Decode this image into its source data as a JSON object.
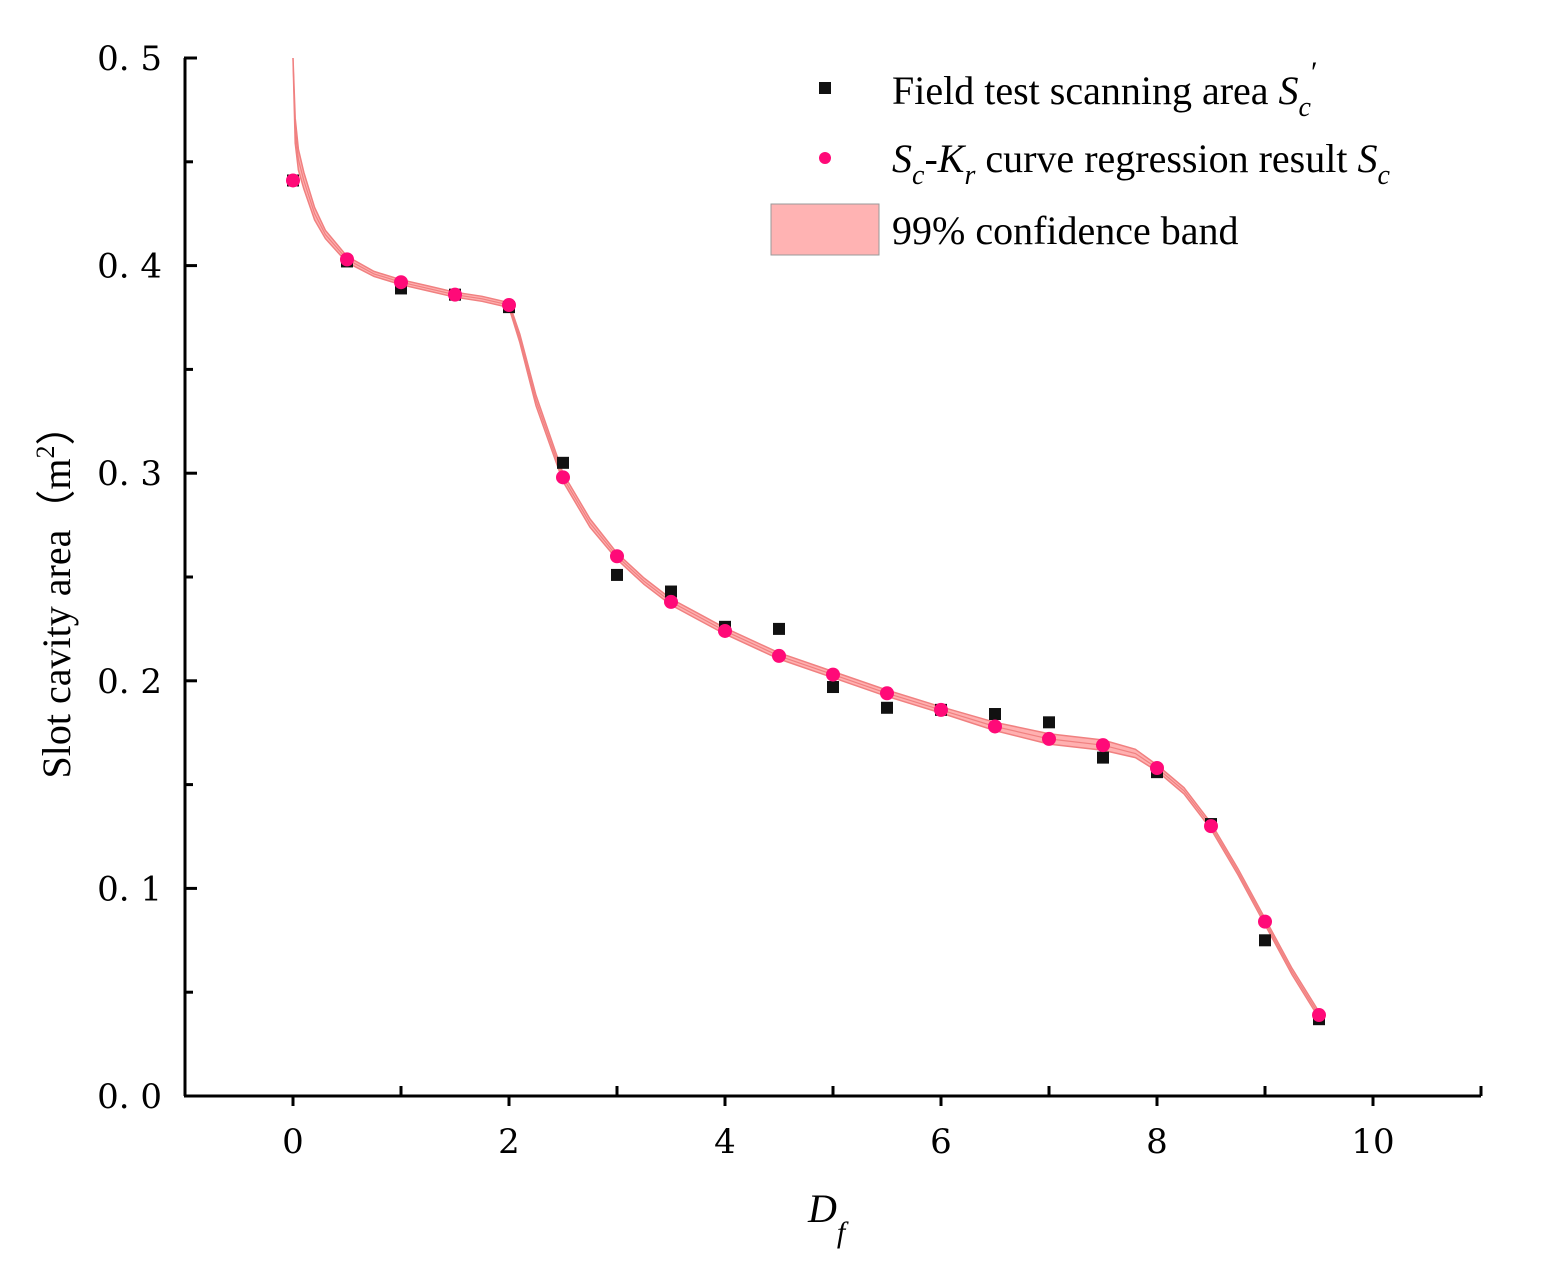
{
  "chart_data": {
    "type": "scatter",
    "xlabel": "D",
    "xlabel_sub": "f",
    "ylabel": "Slot cavity area（m",
    "ylabel_sup": "2",
    "ylabel_close": "）",
    "xlim": [
      -1,
      11
    ],
    "ylim": [
      0,
      0.5
    ],
    "x_ticks": [
      0,
      2,
      4,
      6,
      8,
      10
    ],
    "x_tick_labels": [
      "0",
      "2",
      "4",
      "6",
      "8",
      "10"
    ],
    "x_minor_ticks": [
      1,
      3,
      5,
      7,
      9
    ],
    "y_ticks": [
      0,
      0.1,
      0.2,
      0.3,
      0.4,
      0.5
    ],
    "y_tick_labels": [
      "0. 0",
      "0. 1",
      "0. 2",
      "0. 3",
      "0. 4",
      "0. 5"
    ],
    "y_minor_ticks": [
      0.05,
      0.15,
      0.25,
      0.35,
      0.45
    ],
    "legend_position": "top-right",
    "series": [
      {
        "name": "Field test scanning area",
        "legend_parts": [
          "Field test scanning area ",
          "S",
          "c",
          "′"
        ],
        "marker": "square",
        "color": "#111111",
        "x": [
          0,
          0.5,
          1,
          1.5,
          2,
          2.5,
          3,
          3.5,
          4,
          4.5,
          5,
          5.5,
          6,
          6.5,
          7,
          7.5,
          8,
          8.5,
          9,
          9.5
        ],
        "y": [
          0.441,
          0.402,
          0.389,
          0.386,
          0.38,
          0.305,
          0.251,
          0.243,
          0.226,
          0.225,
          0.197,
          0.187,
          0.186,
          0.184,
          0.18,
          0.163,
          0.156,
          0.131,
          0.075,
          0.037
        ]
      },
      {
        "name": "Sc-Kr curve regression result Sc",
        "legend_parts": [
          "S",
          "c",
          "-",
          "K",
          "r",
          " curve regression result ",
          "S",
          "c"
        ],
        "marker": "circle",
        "color": "#ff0a78",
        "x": [
          0,
          0.5,
          1,
          1.5,
          2,
          2.5,
          3,
          3.5,
          4,
          4.5,
          5,
          5.5,
          6,
          6.5,
          7,
          7.5,
          8,
          8.5,
          9,
          9.5
        ],
        "y": [
          0.441,
          0.403,
          0.392,
          0.386,
          0.381,
          0.298,
          0.26,
          0.238,
          0.224,
          0.212,
          0.203,
          0.194,
          0.186,
          0.178,
          0.172,
          0.169,
          0.158,
          0.13,
          0.084,
          0.039
        ]
      }
    ],
    "confidence_band": {
      "name": "99% confidence band",
      "color": "#ffb0b0",
      "edge_color": "#f08080",
      "x": [
        0,
        0.02,
        0.05,
        0.1,
        0.2,
        0.3,
        0.5,
        0.75,
        1,
        1.25,
        1.5,
        1.75,
        2,
        2.1,
        2.25,
        2.5,
        2.75,
        3,
        3.25,
        3.5,
        3.75,
        4,
        4.5,
        5,
        5.5,
        6,
        6.5,
        7,
        7.5,
        7.8,
        8,
        8.25,
        8.5,
        8.75,
        9,
        9.25,
        9.5
      ],
      "y": [
        0.5,
        0.465,
        0.451,
        0.441,
        0.425,
        0.415,
        0.403,
        0.396,
        0.392,
        0.389,
        0.386,
        0.384,
        0.381,
        0.365,
        0.335,
        0.298,
        0.276,
        0.26,
        0.248,
        0.238,
        0.231,
        0.224,
        0.212,
        0.203,
        0.194,
        0.186,
        0.178,
        0.172,
        0.169,
        0.165,
        0.158,
        0.147,
        0.13,
        0.108,
        0.084,
        0.06,
        0.039
      ],
      "half_width": [
        0,
        0.006,
        0.005,
        0.004,
        0.003,
        0.002,
        0.0015,
        0.0012,
        0.0012,
        0.0012,
        0.0012,
        0.0012,
        0.0012,
        0.002,
        0.0025,
        0.002,
        0.002,
        0.0015,
        0.0015,
        0.0015,
        0.0015,
        0.0015,
        0.0015,
        0.0015,
        0.0015,
        0.0015,
        0.002,
        0.0025,
        0.0025,
        0.002,
        0.0015,
        0.0015,
        0.0015,
        0.0015,
        0.0015,
        0.0015,
        0.0015
      ]
    }
  }
}
